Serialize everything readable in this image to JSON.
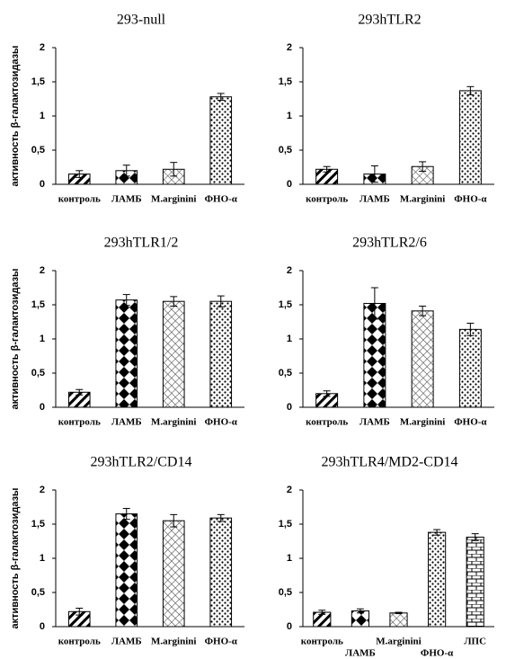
{
  "chart_data": [
    {
      "type": "bar",
      "title": "293-null",
      "ylabel": "активность β-галактозидазы",
      "categories": [
        "контроль",
        "ЛАМБ",
        "M.arginini",
        "ФНО-α"
      ],
      "values": [
        0.15,
        0.2,
        0.22,
        1.28
      ],
      "errors": [
        0.05,
        0.08,
        0.1,
        0.05
      ],
      "patterns": [
        "diagonal",
        "diamond",
        "crosshatch",
        "dots"
      ],
      "ylim": [
        0,
        2
      ],
      "yticks": [
        0,
        {
          "value": 0.5,
          "label": "0,5"
        },
        1,
        {
          "value": 1.5,
          "label": "1,5"
        },
        2
      ]
    },
    {
      "type": "bar",
      "title": "293hTLR2",
      "categories": [
        "контроль",
        "ЛАМБ",
        "M.arginini",
        "ФНО-α"
      ],
      "values": [
        0.22,
        0.15,
        0.26,
        1.37
      ],
      "errors": [
        0.04,
        0.12,
        0.07,
        0.06
      ],
      "patterns": [
        "diagonal",
        "diamond",
        "crosshatch",
        "dots"
      ],
      "ylim": [
        0,
        2
      ],
      "yticks": [
        0,
        {
          "value": 0.5,
          "label": "0,5"
        },
        1,
        {
          "value": 1.5,
          "label": "1,5"
        },
        2
      ]
    },
    {
      "type": "bar",
      "title": "293hTLR1/2",
      "ylabel": "активность β-галактозидазы",
      "categories": [
        "контроль",
        "ЛАМБ",
        "M.arginini",
        "ФНО-α"
      ],
      "values": [
        0.22,
        1.57,
        1.55,
        1.55
      ],
      "errors": [
        0.04,
        0.08,
        0.07,
        0.08
      ],
      "patterns": [
        "diagonal",
        "diamond",
        "crosshatch",
        "dots"
      ],
      "ylim": [
        0,
        2
      ],
      "yticks": [
        0,
        {
          "value": 0.5,
          "label": "0,5"
        },
        1,
        {
          "value": 1.5,
          "label": "1,5"
        },
        2
      ]
    },
    {
      "type": "bar",
      "title": "293hTLR2/6",
      "categories": [
        "контроль",
        "ЛАМБ",
        "M.arginini",
        "ФНО-α"
      ],
      "values": [
        0.2,
        1.52,
        1.41,
        1.14
      ],
      "errors": [
        0.04,
        0.23,
        0.07,
        0.09
      ],
      "patterns": [
        "diagonal",
        "diamond",
        "crosshatch",
        "dots"
      ],
      "ylim": [
        0,
        2
      ],
      "yticks": [
        0,
        {
          "value": 0.5,
          "label": "0,5"
        },
        1,
        {
          "value": 1.5,
          "label": "1,5"
        },
        2
      ]
    },
    {
      "type": "bar",
      "title": "293hTLR2/CD14",
      "ylabel": "активность β-галактозидазы",
      "categories": [
        "контроль",
        "ЛАМБ",
        "M.arginini",
        "ФНО-α"
      ],
      "values": [
        0.22,
        1.65,
        1.55,
        1.59
      ],
      "errors": [
        0.05,
        0.08,
        0.09,
        0.05
      ],
      "patterns": [
        "diagonal",
        "diamond",
        "crosshatch",
        "dots"
      ],
      "ylim": [
        0,
        2
      ],
      "yticks": [
        0,
        {
          "value": 0.5,
          "label": "0,5"
        },
        1,
        {
          "value": 1.5,
          "label": "1,5"
        },
        2
      ]
    },
    {
      "type": "bar",
      "title": "293hTLR4/MD2-CD14",
      "categories": [
        "контроль",
        "ЛАМБ",
        "M.arginini",
        "ФНО-α",
        "ЛПС"
      ],
      "values": [
        0.21,
        0.23,
        0.2,
        1.38,
        1.31
      ],
      "errors": [
        0.03,
        0.03,
        0.01,
        0.04,
        0.05
      ],
      "patterns": [
        "diagonal",
        "diamond",
        "crosshatch",
        "dots",
        "brick"
      ],
      "ylim": [
        0,
        2
      ],
      "yticks": [
        0,
        {
          "value": 0.5,
          "label": "0,5"
        },
        1,
        {
          "value": 1.5,
          "label": "1,5"
        },
        2
      ]
    }
  ]
}
